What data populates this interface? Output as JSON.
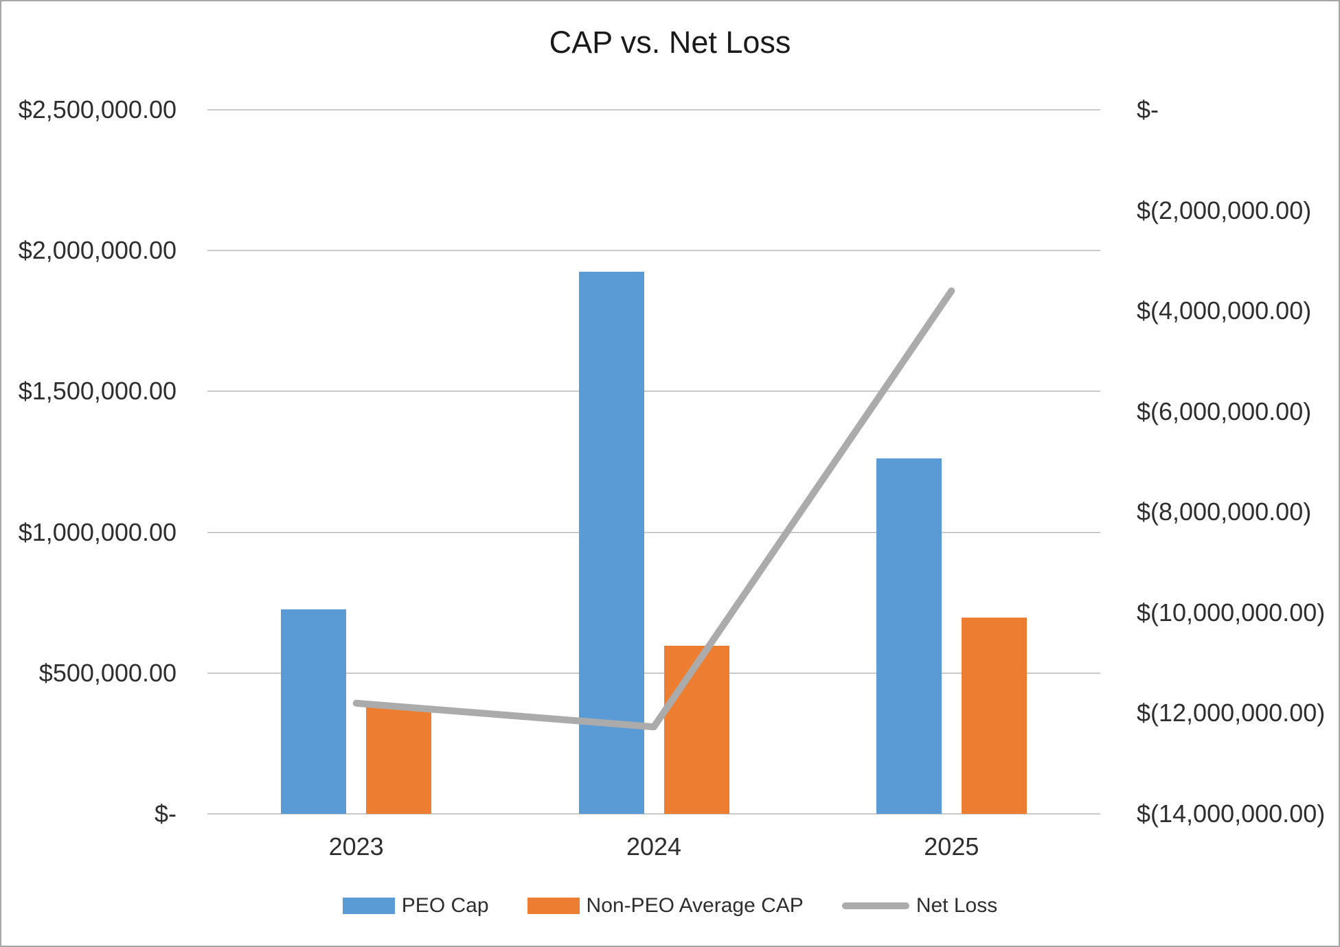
{
  "title": "CAP vs. Net Loss",
  "chart_data": {
    "type": "bar",
    "subtype": "combo-bar-line-dual-axis",
    "title": "CAP vs. Net Loss",
    "categories": [
      "2023",
      "2024",
      "2025"
    ],
    "series": [
      {
        "name": "PEO Cap",
        "type": "bar",
        "axis": "left",
        "color": "#5B9BD5",
        "values": [
          726000,
          1925000,
          1262000
        ]
      },
      {
        "name": "Non-PEO Average CAP",
        "type": "bar",
        "axis": "left",
        "color": "#ED7D31",
        "values": [
          383000,
          597000,
          697000
        ]
      },
      {
        "name": "Net Loss",
        "type": "line",
        "axis": "right",
        "color": "#ABABAB",
        "values": [
          -11800000,
          -12270000,
          -3600000
        ]
      }
    ],
    "left_axis": {
      "min": 0,
      "max": 2500000,
      "tick_labels": [
        "$2,500,000.00",
        "$2,000,000.00",
        "$1,500,000.00",
        "$1,000,000.00",
        "$500,000.00",
        "$-"
      ]
    },
    "right_axis": {
      "min": -14000000,
      "max": 0,
      "tick_labels": [
        "$-",
        "$(2,000,000.00)",
        "$(4,000,000.00)",
        "$(6,000,000.00)",
        "$(8,000,000.00)",
        "$(10,000,000.00)",
        "$(12,000,000.00)",
        "$(14,000,000.00)"
      ]
    },
    "legend_position": "bottom",
    "grid": true,
    "grid_color": "#C9C9C9",
    "chart_border_color": "#A6A6A6"
  }
}
